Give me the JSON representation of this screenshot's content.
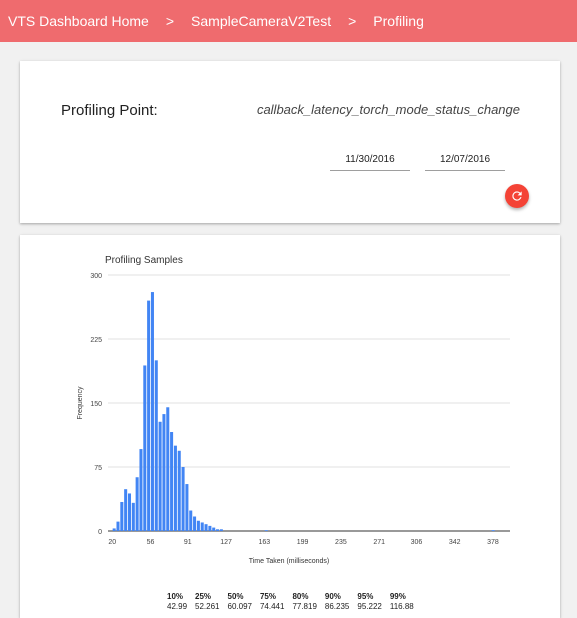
{
  "breadcrumb": {
    "items": [
      "VTS Dashboard Home",
      "SampleCameraV2Test",
      "Profiling"
    ],
    "separator": ">"
  },
  "profiling": {
    "label": "Profiling Point:",
    "value": "callback_latency_torch_mode_status_change",
    "start_date": "11/30/2016",
    "end_date": "12/07/2016"
  },
  "chart_data": {
    "type": "bar",
    "title": "Profiling Samples",
    "xlabel": "Time Taken (milliseconds)",
    "ylabel": "Frequency",
    "xlim": [
      16,
      394
    ],
    "ylim": [
      0,
      300
    ],
    "x_ticks": [
      "20",
      "56",
      "91",
      "127",
      "163",
      "199",
      "235",
      "271",
      "306",
      "342",
      "378"
    ],
    "y_ticks": [
      "0",
      "75",
      "150",
      "225",
      "300"
    ],
    "bin_width": 3.6,
    "bin_starts": [
      20,
      23.6,
      27.2,
      30.8,
      34.4,
      38,
      41.6,
      45.2,
      48.8,
      52.4,
      56,
      59.6,
      63.2,
      66.8,
      70.4,
      74,
      77.6,
      81.2,
      84.8,
      88.4,
      92,
      95.6,
      99.2,
      102.8,
      106.4,
      110,
      113.6,
      117.2,
      120.8,
      163,
      376.4
    ],
    "values": [
      3,
      11,
      34,
      49,
      44,
      33,
      63,
      96,
      194,
      270,
      280,
      200,
      128,
      137,
      145,
      116,
      100,
      94,
      75,
      55,
      24,
      17,
      12,
      10,
      8,
      6,
      4,
      2,
      2,
      1,
      1
    ],
    "color": "#4285f4",
    "grid": true,
    "legend": "none"
  },
  "percentiles": {
    "headers": [
      "10%",
      "25%",
      "50%",
      "75%",
      "80%",
      "90%",
      "95%",
      "99%"
    ],
    "values": [
      "42.99",
      "52.261",
      "60.097",
      "74.441",
      "77.819",
      "86.235",
      "95.222",
      "116.88"
    ]
  },
  "colors": {
    "header_bg": "#ef6b6e",
    "refresh_button": "#f44336",
    "bar": "#4285f4"
  },
  "icons": {
    "refresh": "refresh-icon"
  }
}
